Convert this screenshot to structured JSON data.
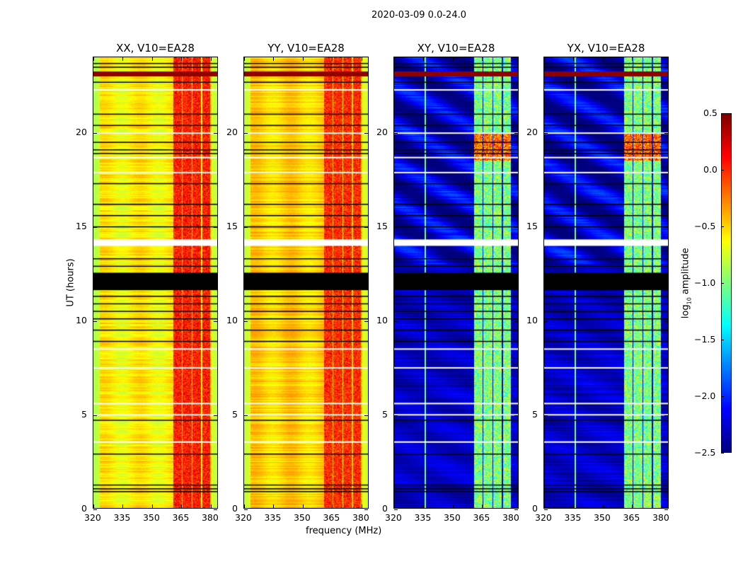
{
  "chart_data": {
    "type": "heatmap",
    "title": "2020-03-09 0.0-24.0",
    "xlabel": "frequency (MHz)",
    "ylabel": "UT (hours)",
    "xlim": [
      320,
      384
    ],
    "ylim": [
      0,
      24
    ],
    "xticks": [
      "320",
      "335",
      "350",
      "365",
      "380"
    ],
    "yticks": [
      "0",
      "5",
      "10",
      "15",
      "20"
    ],
    "panels": [
      {
        "title": "XX, V10=EA28",
        "baseline": -0.6,
        "edge": -0.85,
        "band_level": 0.05
      },
      {
        "title": "YY, V10=EA28",
        "baseline": -0.5,
        "edge": -0.8,
        "band_level": 0.0
      },
      {
        "title": "XY, V10=EA28",
        "baseline": -2.3,
        "edge": -2.3,
        "band_level": -1.0
      },
      {
        "title": "YX, V10=EA28",
        "baseline": -2.3,
        "edge": -2.3,
        "band_level": -1.0
      }
    ],
    "bright_bands_mhz": [
      [
        361,
        365.5
      ],
      [
        366,
        370.5
      ],
      [
        371,
        375.5
      ],
      [
        376,
        380
      ]
    ],
    "masked_block_hours": [
      11.6,
      12.53
    ],
    "blank_block_hours": [
      13.96,
      14.3
    ],
    "black_rows_hours": [
      0.9,
      1.05,
      1.25,
      2.9,
      4.7,
      8.9,
      9.5,
      10.1,
      10.5,
      10.9,
      11.3,
      12.9,
      13.3,
      15.0,
      15.6,
      16.2,
      17.3,
      18.9,
      19.1,
      19.5,
      20.4,
      21.0,
      22.7,
      23.5,
      23.7
    ],
    "white_rows_hours": [
      3.55,
      5.0,
      5.6,
      7.5,
      8.5,
      17.9,
      18.7,
      20.0,
      22.3
    ],
    "colorbar": {
      "label": "log10 amplitude",
      "label_main": "log",
      "label_sub": "10",
      "label_rest": " amplitude",
      "range": [
        -2.5,
        0.5
      ],
      "ticks": [
        "0.5",
        "0.0",
        "−0.5",
        "−1.0",
        "−1.5",
        "−2.0",
        "−2.5"
      ],
      "colormap": "jet"
    }
  }
}
